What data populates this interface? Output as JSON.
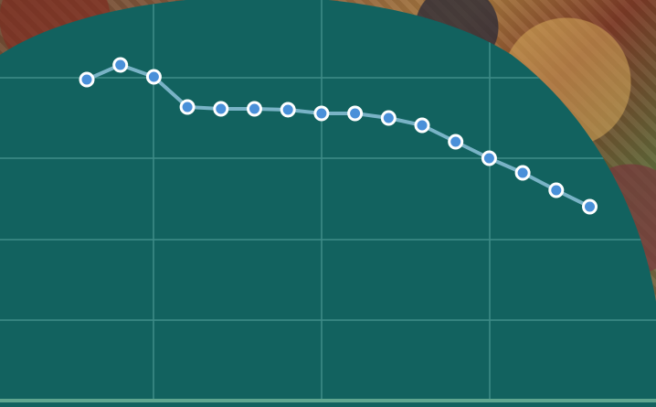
{
  "chart_data": {
    "type": "line",
    "title": "",
    "xlabel": "",
    "ylabel": "",
    "grid": true,
    "series": [
      {
        "values": [
          87,
          71,
          84,
          117,
          119,
          119,
          120,
          124,
          124,
          129,
          137,
          155,
          173,
          189,
          208,
          226
        ]
      }
    ]
  },
  "colors": {
    "panel": "#12625f",
    "grid": "#3f8c88",
    "line": "#79b3c6",
    "marker_fill": "#4a90d9",
    "marker_stroke": "#ffffff",
    "baseline": "#5fa58f"
  }
}
